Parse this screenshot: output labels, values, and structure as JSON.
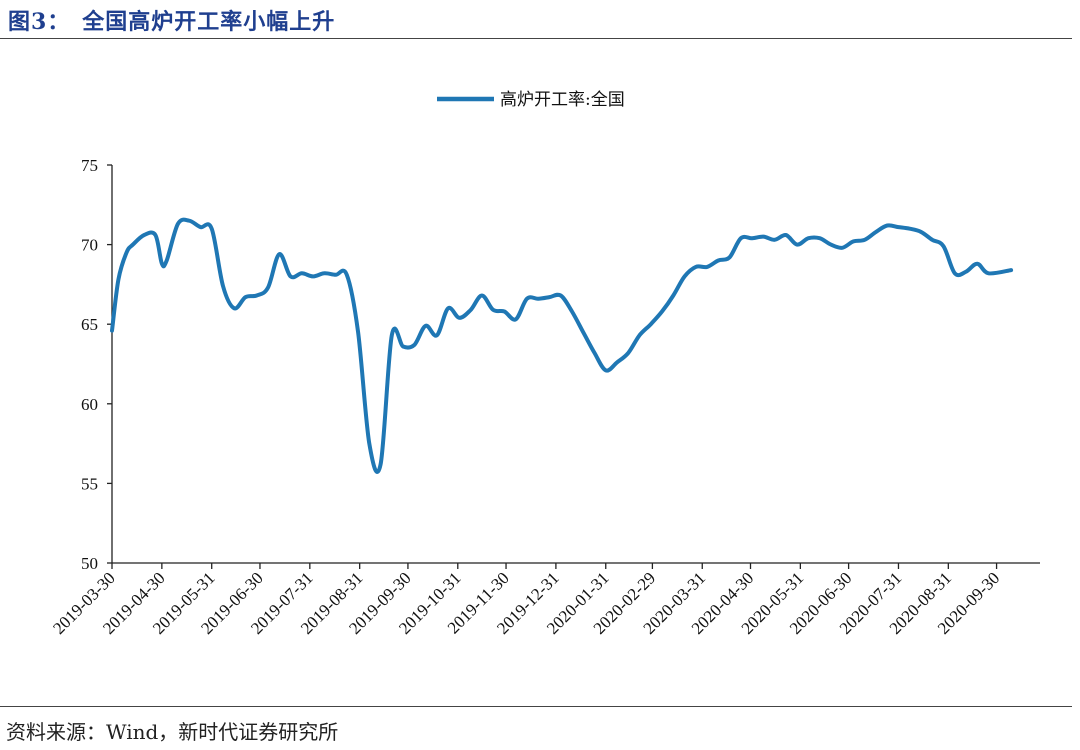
{
  "figure_title": "图3：　全国高炉开工率小幅上升",
  "source_note": "资料来源：Wind，新时代证券研究所",
  "colors": {
    "series": "#1f77b4",
    "title": "#1f3f8f",
    "axis": "#222222"
  },
  "chart_data": {
    "type": "line",
    "xlabel": "",
    "ylabel": "",
    "ylim": [
      50,
      75
    ],
    "y_ticks": [
      50,
      55,
      60,
      65,
      70,
      75
    ],
    "x_range": [
      "2019-03-30",
      "2020-10-27"
    ],
    "x_ticks": [
      "2019-03-30",
      "2019-04-30",
      "2019-05-31",
      "2019-06-30",
      "2019-07-31",
      "2019-08-31",
      "2019-09-30",
      "2019-10-31",
      "2019-11-30",
      "2019-12-31",
      "2020-01-31",
      "2020-02-29",
      "2020-03-31",
      "2020-04-30",
      "2020-05-31",
      "2020-06-30",
      "2020-07-31",
      "2020-08-31",
      "2020-09-30"
    ],
    "grid": false,
    "legend_position": "top-center",
    "series": [
      {
        "name": "高炉开工率:全国",
        "points": [
          [
            "2019-03-30",
            64.6
          ],
          [
            "2019-04-03",
            67.8
          ],
          [
            "2019-04-08",
            69.5
          ],
          [
            "2019-04-12",
            70.0
          ],
          [
            "2019-04-19",
            70.6
          ],
          [
            "2019-04-26",
            70.6
          ],
          [
            "2019-04-30",
            68.8
          ],
          [
            "2019-05-03",
            69.0
          ],
          [
            "2019-05-10",
            71.3
          ],
          [
            "2019-05-17",
            71.5
          ],
          [
            "2019-05-24",
            71.1
          ],
          [
            "2019-05-31",
            71.0
          ],
          [
            "2019-06-07",
            67.4
          ],
          [
            "2019-06-14",
            66.0
          ],
          [
            "2019-06-21",
            66.7
          ],
          [
            "2019-06-28",
            66.8
          ],
          [
            "2019-07-05",
            67.3
          ],
          [
            "2019-07-12",
            69.4
          ],
          [
            "2019-07-19",
            68.0
          ],
          [
            "2019-07-26",
            68.2
          ],
          [
            "2019-08-02",
            68.0
          ],
          [
            "2019-08-09",
            68.2
          ],
          [
            "2019-08-16",
            68.1
          ],
          [
            "2019-08-23",
            68.1
          ],
          [
            "2019-08-30",
            64.5
          ],
          [
            "2019-09-06",
            57.5
          ],
          [
            "2019-09-13",
            56.2
          ],
          [
            "2019-09-20",
            64.3
          ],
          [
            "2019-09-27",
            63.6
          ],
          [
            "2019-10-04",
            63.7
          ],
          [
            "2019-10-11",
            64.9
          ],
          [
            "2019-10-18",
            64.3
          ],
          [
            "2019-10-25",
            66.0
          ],
          [
            "2019-11-01",
            65.4
          ],
          [
            "2019-11-08",
            65.9
          ],
          [
            "2019-11-15",
            66.8
          ],
          [
            "2019-11-22",
            65.9
          ],
          [
            "2019-11-29",
            65.8
          ],
          [
            "2019-12-06",
            65.3
          ],
          [
            "2019-12-13",
            66.6
          ],
          [
            "2019-12-20",
            66.6
          ],
          [
            "2019-12-27",
            66.7
          ],
          [
            "2020-01-03",
            66.8
          ],
          [
            "2020-01-10",
            65.8
          ],
          [
            "2020-01-17",
            64.5
          ],
          [
            "2020-01-24",
            63.2
          ],
          [
            "2020-01-31",
            62.1
          ],
          [
            "2020-02-07",
            62.6
          ],
          [
            "2020-02-14",
            63.2
          ],
          [
            "2020-02-21",
            64.3
          ],
          [
            "2020-02-28",
            65.0
          ],
          [
            "2020-03-06",
            65.8
          ],
          [
            "2020-03-13",
            66.8
          ],
          [
            "2020-03-20",
            68.0
          ],
          [
            "2020-03-27",
            68.6
          ],
          [
            "2020-04-03",
            68.6
          ],
          [
            "2020-04-10",
            69.0
          ],
          [
            "2020-04-17",
            69.2
          ],
          [
            "2020-04-24",
            70.4
          ],
          [
            "2020-05-01",
            70.4
          ],
          [
            "2020-05-08",
            70.5
          ],
          [
            "2020-05-15",
            70.3
          ],
          [
            "2020-05-22",
            70.6
          ],
          [
            "2020-05-29",
            70.0
          ],
          [
            "2020-06-05",
            70.4
          ],
          [
            "2020-06-12",
            70.4
          ],
          [
            "2020-06-19",
            70.0
          ],
          [
            "2020-06-26",
            69.8
          ],
          [
            "2020-07-03",
            70.2
          ],
          [
            "2020-07-10",
            70.3
          ],
          [
            "2020-07-17",
            70.8
          ],
          [
            "2020-07-24",
            71.2
          ],
          [
            "2020-07-31",
            71.1
          ],
          [
            "2020-08-07",
            71.0
          ],
          [
            "2020-08-14",
            70.8
          ],
          [
            "2020-08-21",
            70.3
          ],
          [
            "2020-08-28",
            69.9
          ],
          [
            "2020-09-04",
            68.2
          ],
          [
            "2020-09-11",
            68.3
          ],
          [
            "2020-09-18",
            68.8
          ],
          [
            "2020-09-25",
            68.2
          ],
          [
            "2020-10-09",
            68.4
          ]
        ]
      }
    ]
  }
}
